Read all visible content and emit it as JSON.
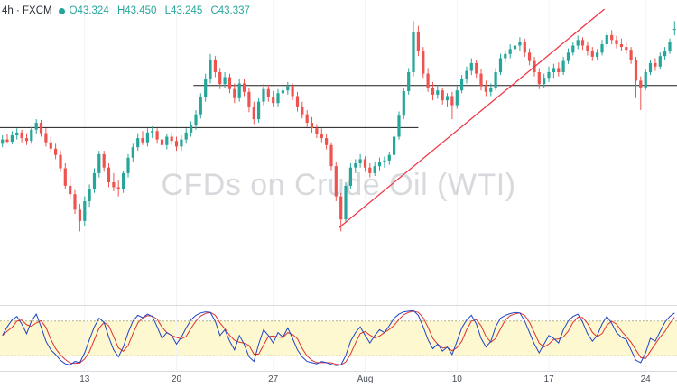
{
  "legend": {
    "symbol_text": "4h · FXCM",
    "symbol_color": "#2a2e39",
    "marker_color": "#26a69a",
    "ohlc_color": "#26a69a",
    "ohlc": {
      "o_label": "O",
      "o_value": "43.324",
      "h_label": "H",
      "h_value": "43.450",
      "l_label": "L",
      "l_value": "43.245",
      "c_label": "C",
      "c_value": "43.337"
    }
  },
  "watermark": {
    "text": "CFDs on Crude Oil (WTI)"
  },
  "colors": {
    "background": "#ffffff",
    "grid": "#f2f3f5",
    "panel_border": "#d9dbe0",
    "axis_text": "#4a4f57",
    "watermark": "rgba(132,138,148,0.32)",
    "level_line": "#1c1c1c"
  },
  "time_axis": {
    "labels": [
      {
        "index": 17,
        "label": "13"
      },
      {
        "index": 36,
        "label": "20"
      },
      {
        "index": 56,
        "label": "27"
      },
      {
        "index": 75,
        "label": "Aug"
      },
      {
        "index": 94,
        "label": "10"
      },
      {
        "index": 113,
        "label": "17"
      },
      {
        "index": 133,
        "label": "24"
      }
    ]
  },
  "chart_data": [
    {
      "type": "candlestick",
      "name": "CFDs on Crude Oil (WTI), 4h, FXCM",
      "ohlc_format": [
        "open",
        "high",
        "low",
        "close"
      ],
      "price_range": [
        39.4,
        43.75
      ],
      "up_color": "#26a69a",
      "down_color": "#ef5350",
      "candles": [
        [
          41.7,
          41.82,
          41.65,
          41.76
        ],
        [
          41.76,
          41.84,
          41.7,
          41.73
        ],
        [
          41.73,
          41.88,
          41.69,
          41.82
        ],
        [
          41.82,
          41.92,
          41.76,
          41.86
        ],
        [
          41.86,
          41.9,
          41.72,
          41.78
        ],
        [
          41.78,
          41.85,
          41.68,
          41.74
        ],
        [
          41.74,
          41.94,
          41.7,
          41.9
        ],
        [
          41.9,
          42.05,
          41.84,
          42.0
        ],
        [
          42.0,
          42.04,
          41.8,
          41.85
        ],
        [
          41.85,
          41.92,
          41.66,
          41.72
        ],
        [
          41.72,
          41.8,
          41.58,
          41.63
        ],
        [
          41.63,
          41.7,
          41.48,
          41.54
        ],
        [
          41.54,
          41.6,
          41.3,
          41.35
        ],
        [
          41.35,
          41.42,
          41.05,
          41.1
        ],
        [
          41.1,
          41.22,
          40.92,
          40.98
        ],
        [
          40.98,
          41.04,
          40.7,
          40.76
        ],
        [
          40.76,
          40.84,
          40.45,
          40.6
        ],
        [
          40.6,
          40.95,
          40.52,
          40.88
        ],
        [
          40.88,
          41.12,
          40.8,
          41.06
        ],
        [
          41.06,
          41.35,
          41.0,
          41.28
        ],
        [
          41.28,
          41.6,
          41.22,
          41.55
        ],
        [
          41.55,
          41.6,
          41.3,
          41.36
        ],
        [
          41.36,
          41.42,
          41.08,
          41.15
        ],
        [
          41.15,
          41.28,
          41.02,
          41.08
        ],
        [
          41.08,
          41.18,
          40.95,
          41.05
        ],
        [
          41.05,
          41.32,
          41.0,
          41.28
        ],
        [
          41.28,
          41.55,
          41.22,
          41.5
        ],
        [
          41.5,
          41.7,
          41.44,
          41.65
        ],
        [
          41.65,
          41.85,
          41.6,
          41.78
        ],
        [
          41.78,
          41.88,
          41.68,
          41.72
        ],
        [
          41.72,
          41.92,
          41.66,
          41.86
        ],
        [
          41.86,
          41.95,
          41.78,
          41.88
        ],
        [
          41.88,
          41.92,
          41.7,
          41.76
        ],
        [
          41.76,
          41.82,
          41.62,
          41.68
        ],
        [
          41.68,
          41.84,
          41.62,
          41.8
        ],
        [
          41.8,
          41.86,
          41.68,
          41.74
        ],
        [
          41.74,
          41.8,
          41.6,
          41.66
        ],
        [
          41.66,
          41.82,
          41.6,
          41.76
        ],
        [
          41.76,
          41.92,
          41.7,
          41.86
        ],
        [
          41.86,
          42.02,
          41.8,
          41.96
        ],
        [
          41.96,
          42.18,
          41.9,
          42.12
        ],
        [
          42.12,
          42.42,
          42.06,
          42.36
        ],
        [
          42.36,
          42.7,
          42.3,
          42.62
        ],
        [
          42.62,
          42.98,
          42.56,
          42.9
        ],
        [
          42.9,
          42.95,
          42.65,
          42.72
        ],
        [
          42.72,
          42.78,
          42.48,
          42.55
        ],
        [
          42.55,
          42.72,
          42.5,
          42.65
        ],
        [
          42.65,
          42.7,
          42.42,
          42.48
        ],
        [
          42.48,
          42.56,
          42.28,
          42.35
        ],
        [
          42.35,
          42.62,
          42.3,
          42.56
        ],
        [
          42.56,
          42.62,
          42.38,
          42.44
        ],
        [
          42.44,
          42.5,
          42.15,
          42.22
        ],
        [
          42.22,
          42.3,
          41.98,
          42.05
        ],
        [
          42.05,
          42.35,
          42.0,
          42.3
        ],
        [
          42.3,
          42.55,
          42.25,
          42.48
        ],
        [
          42.48,
          42.54,
          42.3,
          42.36
        ],
        [
          42.36,
          42.45,
          42.22,
          42.28
        ],
        [
          42.28,
          42.48,
          42.22,
          42.42
        ],
        [
          42.42,
          42.52,
          42.34,
          42.46
        ],
        [
          42.46,
          42.58,
          42.4,
          42.52
        ],
        [
          42.52,
          42.56,
          42.32,
          42.38
        ],
        [
          42.38,
          42.44,
          42.16,
          42.22
        ],
        [
          42.22,
          42.3,
          42.06,
          42.12
        ],
        [
          42.12,
          42.18,
          41.94,
          42.0
        ],
        [
          42.0,
          42.08,
          41.86,
          41.92
        ],
        [
          41.92,
          41.98,
          41.78,
          41.84
        ],
        [
          41.84,
          41.92,
          41.72,
          41.78
        ],
        [
          41.78,
          41.84,
          41.62,
          41.68
        ],
        [
          41.68,
          41.72,
          41.32,
          41.38
        ],
        [
          41.38,
          41.44,
          40.88,
          40.95
        ],
        [
          40.95,
          41.0,
          40.45,
          40.62
        ],
        [
          40.62,
          41.15,
          40.58,
          41.1
        ],
        [
          41.1,
          41.42,
          41.05,
          41.36
        ],
        [
          41.36,
          41.48,
          41.28,
          41.42
        ],
        [
          41.42,
          41.55,
          41.36,
          41.48
        ],
        [
          41.48,
          41.52,
          41.3,
          41.36
        ],
        [
          41.36,
          41.42,
          41.22,
          41.28
        ],
        [
          41.28,
          41.44,
          41.24,
          41.38
        ],
        [
          41.38,
          41.5,
          41.32,
          41.44
        ],
        [
          41.44,
          41.52,
          41.36,
          41.46
        ],
        [
          41.46,
          41.58,
          41.4,
          41.54
        ],
        [
          41.54,
          41.85,
          41.5,
          41.8
        ],
        [
          41.8,
          42.16,
          41.76,
          42.1
        ],
        [
          42.1,
          42.5,
          42.05,
          42.45
        ],
        [
          42.45,
          42.78,
          42.4,
          42.72
        ],
        [
          42.72,
          43.45,
          42.66,
          43.3
        ],
        [
          43.3,
          43.38,
          42.95,
          43.02
        ],
        [
          43.02,
          43.08,
          42.64,
          42.7
        ],
        [
          42.7,
          42.78,
          42.44,
          42.5
        ],
        [
          42.5,
          42.58,
          42.32,
          42.4
        ],
        [
          42.4,
          42.52,
          42.34,
          42.46
        ],
        [
          42.46,
          42.5,
          42.26,
          42.32
        ],
        [
          42.32,
          42.42,
          42.22,
          42.38
        ],
        [
          42.38,
          42.44,
          42.05,
          42.25
        ],
        [
          42.25,
          42.52,
          42.2,
          42.46
        ],
        [
          42.46,
          42.68,
          42.42,
          42.62
        ],
        [
          42.62,
          42.8,
          42.56,
          42.74
        ],
        [
          42.74,
          42.92,
          42.68,
          42.85
        ],
        [
          42.85,
          42.9,
          42.64,
          42.7
        ],
        [
          42.7,
          42.76,
          42.46,
          42.52
        ],
        [
          42.52,
          42.6,
          42.38,
          42.44
        ],
        [
          42.44,
          42.56,
          42.38,
          42.5
        ],
        [
          42.5,
          42.78,
          42.46,
          42.72
        ],
        [
          42.72,
          42.98,
          42.68,
          42.92
        ],
        [
          42.92,
          43.04,
          42.86,
          42.98
        ],
        [
          42.98,
          43.12,
          42.92,
          43.05
        ],
        [
          43.05,
          43.16,
          42.98,
          43.1
        ],
        [
          43.1,
          43.22,
          43.02,
          43.15
        ],
        [
          43.15,
          43.2,
          42.94,
          43.0
        ],
        [
          43.0,
          43.06,
          42.82,
          42.88
        ],
        [
          42.88,
          42.94,
          42.66,
          42.72
        ],
        [
          42.72,
          42.78,
          42.48,
          42.55
        ],
        [
          42.55,
          42.7,
          42.5,
          42.64
        ],
        [
          42.64,
          42.8,
          42.58,
          42.72
        ],
        [
          42.72,
          42.84,
          42.64,
          42.78
        ],
        [
          42.78,
          42.86,
          42.66,
          42.72
        ],
        [
          42.72,
          42.94,
          42.68,
          42.88
        ],
        [
          42.88,
          43.06,
          42.84,
          43.0
        ],
        [
          43.0,
          43.15,
          42.96,
          43.1
        ],
        [
          43.1,
          43.24,
          43.05,
          43.18
        ],
        [
          43.18,
          43.22,
          43.04,
          43.1
        ],
        [
          43.1,
          43.16,
          42.96,
          43.02
        ],
        [
          43.02,
          43.08,
          42.88,
          42.94
        ],
        [
          42.94,
          43.05,
          42.9,
          43.0
        ],
        [
          43.0,
          43.18,
          42.96,
          43.12
        ],
        [
          43.12,
          43.3,
          43.08,
          43.25
        ],
        [
          43.25,
          43.32,
          43.12,
          43.18
        ],
        [
          43.18,
          43.24,
          43.06,
          43.12
        ],
        [
          43.12,
          43.2,
          43.02,
          43.08
        ],
        [
          43.08,
          43.14,
          42.98,
          43.04
        ],
        [
          43.04,
          43.08,
          42.84,
          42.9
        ],
        [
          42.9,
          42.94,
          42.35,
          42.6
        ],
        [
          42.6,
          42.66,
          42.18,
          42.5
        ],
        [
          42.5,
          42.76,
          42.46,
          42.72
        ],
        [
          42.72,
          42.9,
          42.68,
          42.85
        ],
        [
          42.85,
          42.92,
          42.74,
          42.8
        ],
        [
          42.8,
          43.0,
          42.76,
          42.95
        ],
        [
          42.95,
          43.08,
          42.9,
          43.02
        ],
        [
          43.02,
          43.2,
          42.98,
          43.15
        ],
        [
          43.324,
          43.45,
          43.245,
          43.337
        ]
      ],
      "horizontal_lines": [
        {
          "price": 42.53,
          "from_index": 40,
          "to_index": 140,
          "color": "#1c1c1c"
        },
        {
          "price": 41.93,
          "from_index": 0,
          "to_index": 86,
          "color": "#1c1c1c"
        }
      ],
      "trendline": {
        "from_index": 69.6,
        "from_price": 40.5,
        "to_index": 124.5,
        "to_price": 43.62,
        "color": "#f23645"
      }
    },
    {
      "type": "line",
      "name": "Stochastic",
      "value_range": [
        0,
        100
      ],
      "k_color": "#2044c4",
      "d_color": "#e03131",
      "d_smoothing": 3,
      "band": {
        "upper": 80,
        "lower": 20,
        "fill": "#fdf8d0",
        "edge_color": "#b3b08a",
        "edge_dash": "2,2"
      },
      "k_values": [
        55,
        70,
        82,
        88,
        75,
        58,
        80,
        92,
        70,
        45,
        30,
        22,
        12,
        6,
        4,
        10,
        8,
        25,
        48,
        70,
        85,
        78,
        52,
        30,
        18,
        35,
        60,
        80,
        90,
        86,
        92,
        88,
        70,
        50,
        60,
        55,
        40,
        52,
        68,
        82,
        90,
        94,
        96,
        95,
        80,
        55,
        65,
        45,
        30,
        55,
        40,
        18,
        10,
        40,
        65,
        55,
        42,
        60,
        52,
        68,
        50,
        30,
        18,
        10,
        8,
        6,
        10,
        8,
        5,
        3,
        4,
        20,
        45,
        60,
        70,
        55,
        42,
        55,
        65,
        60,
        72,
        85,
        92,
        96,
        97,
        98,
        90,
        70,
        48,
        32,
        40,
        28,
        35,
        22,
        45,
        68,
        82,
        90,
        75,
        50,
        35,
        45,
        70,
        85,
        90,
        93,
        95,
        94,
        80,
        60,
        40,
        25,
        40,
        55,
        50,
        42,
        65,
        80,
        88,
        92,
        78,
        58,
        45,
        55,
        75,
        88,
        76,
        60,
        52,
        48,
        30,
        12,
        8,
        25,
        50,
        45,
        62,
        78,
        88,
        94
      ]
    }
  ]
}
